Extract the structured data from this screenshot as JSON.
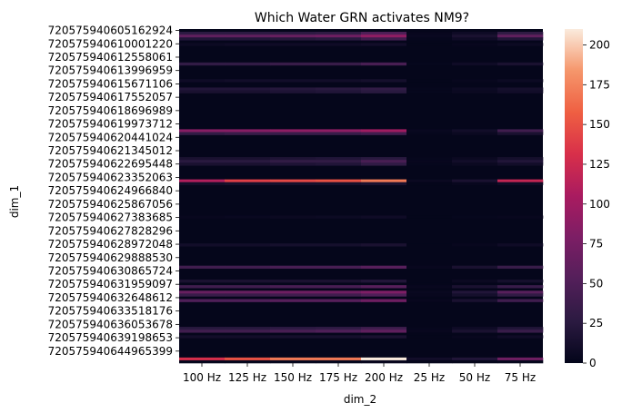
{
  "chart_data": {
    "type": "heatmap",
    "title": "Which Water GRN activates NM9?",
    "xlabel": "dim_2",
    "ylabel": "dim_1",
    "x_categories": [
      "100 Hz",
      "125 Hz",
      "150 Hz",
      "175 Hz",
      "200 Hz",
      "25 Hz",
      "50 Hz",
      "75 Hz"
    ],
    "y_tick_labels": [
      "720575940605162924",
      "720575940610001220",
      "720575940612558061",
      "720575940613996959",
      "720575940615671106",
      "720575940617552057",
      "720575940618696989",
      "720575940619973712",
      "720575940620441024",
      "720575940621345012",
      "720575940622695448",
      "720575940623352063",
      "720575940624966840",
      "720575940625867056",
      "720575940627383685",
      "720575940627828296",
      "720575940628972048",
      "720575940629888530",
      "720575940630865724",
      "720575940631959097",
      "720575940632648612",
      "720575940633518176",
      "720575940636053678",
      "720575940639198653",
      "720575940644965399"
    ],
    "row_count": 120,
    "value_range": [
      0,
      210
    ],
    "colorbar_ticks": [
      0,
      25,
      50,
      75,
      100,
      125,
      150,
      175,
      200
    ],
    "colormap": "rocket",
    "background_value": 1,
    "highlighted_rows": [
      {
        "row": 1,
        "values": [
          28,
          28,
          28,
          30,
          50,
          3,
          8,
          30
        ]
      },
      {
        "row": 2,
        "values": [
          60,
          60,
          65,
          70,
          90,
          4,
          15,
          60
        ]
      },
      {
        "row": 3,
        "values": [
          20,
          20,
          22,
          25,
          40,
          2,
          8,
          20
        ]
      },
      {
        "row": 5,
        "values": [
          6,
          8,
          8,
          8,
          10,
          1,
          3,
          6
        ]
      },
      {
        "row": 12,
        "values": [
          30,
          30,
          35,
          35,
          45,
          2,
          8,
          15
        ]
      },
      {
        "row": 18,
        "values": [
          8,
          10,
          10,
          10,
          12,
          1,
          3,
          6
        ]
      },
      {
        "row": 21,
        "values": [
          20,
          20,
          22,
          25,
          30,
          2,
          6,
          12
        ]
      },
      {
        "row": 22,
        "values": [
          15,
          15,
          18,
          20,
          25,
          2,
          5,
          10
        ]
      },
      {
        "row": 36,
        "values": [
          85,
          85,
          90,
          90,
          100,
          4,
          10,
          40
        ]
      },
      {
        "row": 37,
        "values": [
          30,
          35,
          35,
          35,
          40,
          2,
          5,
          15
        ]
      },
      {
        "row": 46,
        "values": [
          15,
          15,
          18,
          20,
          25,
          2,
          5,
          12
        ]
      },
      {
        "row": 47,
        "values": [
          25,
          25,
          30,
          30,
          45,
          3,
          10,
          20
        ]
      },
      {
        "row": 48,
        "values": [
          15,
          15,
          18,
          20,
          30,
          2,
          5,
          10
        ]
      },
      {
        "row": 54,
        "values": [
          110,
          140,
          145,
          150,
          170,
          5,
          15,
          120
        ]
      },
      {
        "row": 55,
        "values": [
          10,
          12,
          12,
          12,
          15,
          1,
          3,
          8
        ]
      },
      {
        "row": 67,
        "values": [
          3,
          4,
          5,
          6,
          8,
          1,
          2,
          3
        ]
      },
      {
        "row": 77,
        "values": [
          10,
          10,
          12,
          12,
          15,
          1,
          3,
          8
        ]
      },
      {
        "row": 85,
        "values": [
          40,
          40,
          45,
          45,
          55,
          3,
          15,
          35
        ]
      },
      {
        "row": 90,
        "values": [
          15,
          15,
          15,
          15,
          20,
          1,
          5,
          12
        ]
      },
      {
        "row": 92,
        "values": [
          40,
          40,
          45,
          45,
          55,
          3,
          15,
          35
        ]
      },
      {
        "row": 94,
        "values": [
          65,
          65,
          70,
          70,
          80,
          4,
          20,
          55
        ]
      },
      {
        "row": 95,
        "values": [
          35,
          35,
          40,
          40,
          50,
          3,
          12,
          30
        ]
      },
      {
        "row": 97,
        "values": [
          50,
          50,
          55,
          55,
          70,
          3,
          15,
          40
        ]
      },
      {
        "row": 107,
        "values": [
          25,
          25,
          28,
          30,
          40,
          2,
          8,
          20
        ]
      },
      {
        "row": 108,
        "values": [
          40,
          40,
          45,
          50,
          60,
          3,
          15,
          35
        ]
      },
      {
        "row": 110,
        "values": [
          10,
          10,
          12,
          12,
          15,
          1,
          3,
          8
        ]
      },
      {
        "row": 118,
        "values": [
          130,
          150,
          170,
          170,
          210,
          10,
          20,
          70
        ]
      },
      {
        "row": 119,
        "values": [
          2,
          2,
          2,
          2,
          3,
          1,
          1,
          2
        ]
      }
    ]
  }
}
